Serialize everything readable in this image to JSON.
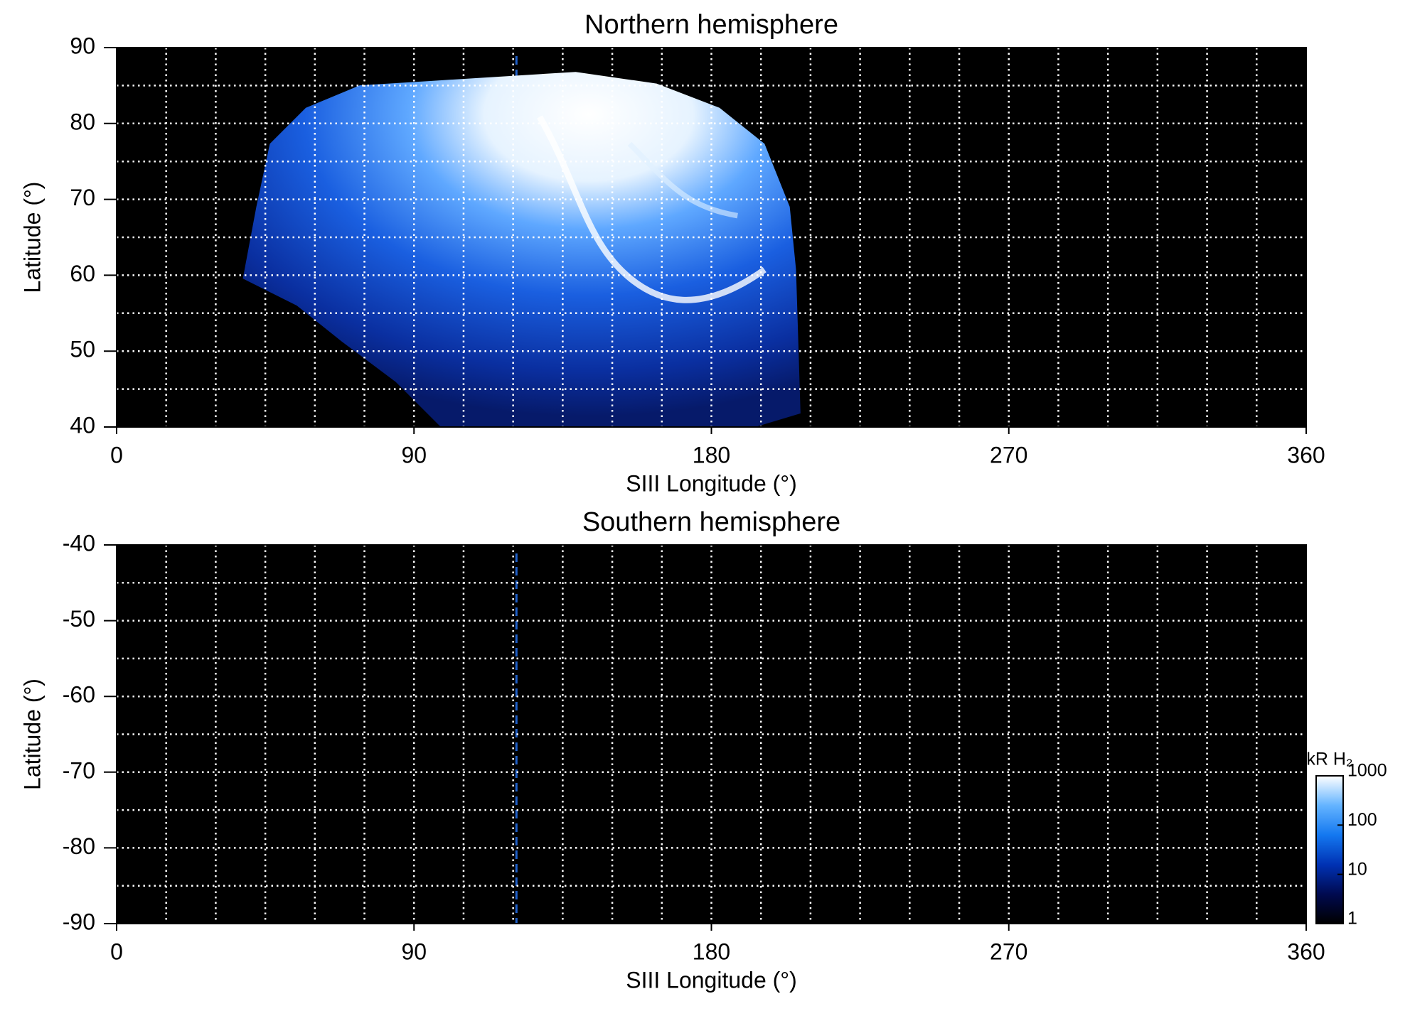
{
  "chart_data": [
    {
      "type": "heatmap",
      "title": "Northern hemisphere",
      "xlabel": "SIII Longitude (°)",
      "ylabel": "Latitude (°)",
      "xlim": [
        0,
        360
      ],
      "ylim": [
        40,
        90
      ],
      "xticks": [
        0,
        90,
        180,
        270,
        360
      ],
      "yticks": [
        40,
        50,
        60,
        70,
        80,
        90
      ],
      "xgrid": [
        15,
        30,
        45,
        60,
        75,
        90,
        105,
        120,
        135,
        150,
        165,
        180,
        195,
        210,
        225,
        240,
        255,
        270,
        285,
        300,
        315,
        330,
        345
      ],
      "ygrid": [
        45,
        50,
        55,
        60,
        65,
        70,
        75,
        80,
        85
      ],
      "marker_x": 121,
      "marker_color": "#1f5fc8",
      "background": "#000000"
    },
    {
      "type": "heatmap",
      "title": "Southern hemisphere",
      "xlabel": "SIII Longitude (°)",
      "ylabel": "Latitude (°)",
      "xlim": [
        0,
        360
      ],
      "ylim": [
        -90,
        -40
      ],
      "xticks": [
        0,
        90,
        180,
        270,
        360
      ],
      "yticks": [
        -40,
        -50,
        -60,
        -70,
        -80,
        -90
      ],
      "xgrid": [
        15,
        30,
        45,
        60,
        75,
        90,
        105,
        120,
        135,
        150,
        165,
        180,
        195,
        210,
        225,
        240,
        255,
        270,
        285,
        300,
        315,
        330,
        345
      ],
      "ygrid": [
        -45,
        -50,
        -55,
        -60,
        -65,
        -70,
        -75,
        -80,
        -85
      ],
      "marker_x": 121,
      "marker_color": "#1f5fc8",
      "background": "#000000",
      "colorbar": {
        "label": "kR H₂",
        "scale": "log",
        "lim": [
          1,
          1000
        ],
        "ticks": [
          1,
          10,
          100,
          1000
        ],
        "colors": [
          "#000000",
          "#000a50",
          "#0032b4",
          "#1478f0",
          "#64b4ff",
          "#ffffff"
        ]
      }
    }
  ]
}
